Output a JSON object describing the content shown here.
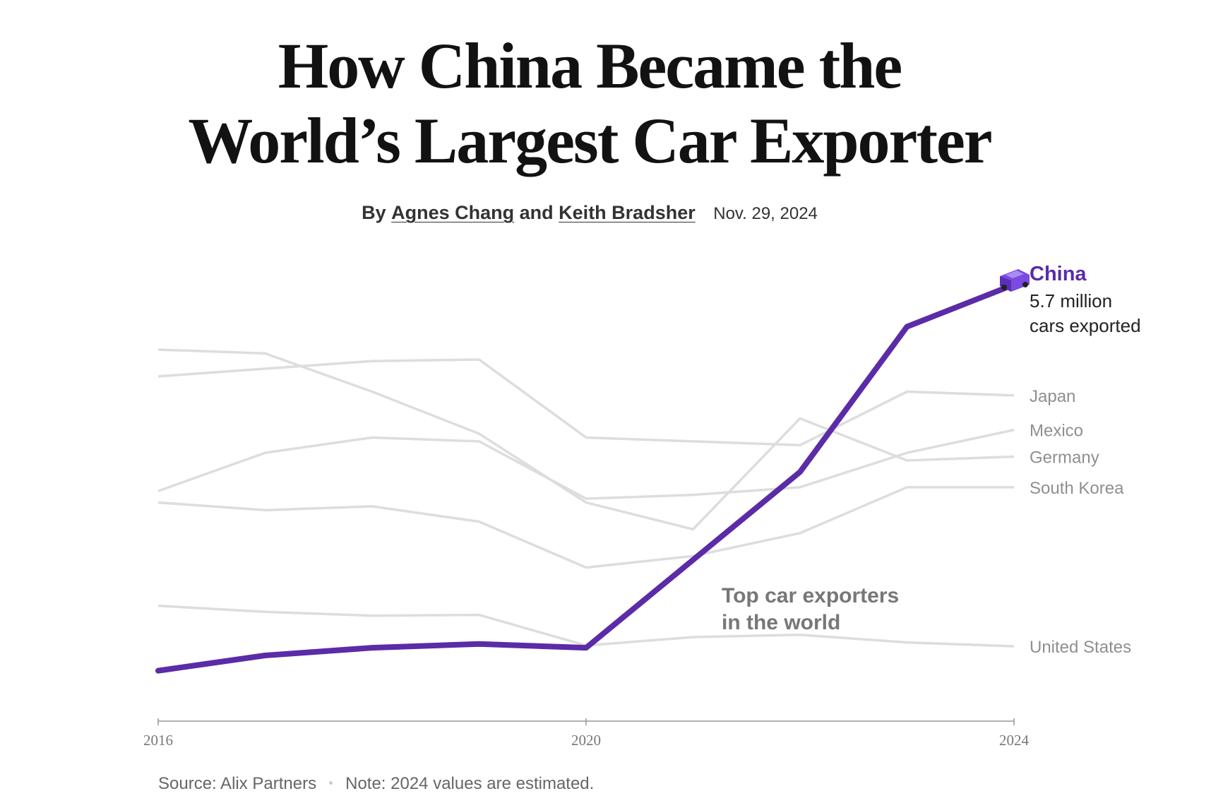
{
  "headline": {
    "line1": "How China Became the",
    "line2": "World’s Largest Car Exporter"
  },
  "byline": {
    "by": "By",
    "author1": "Agnes Chang",
    "and": "and",
    "author2": "Keith Bradsher",
    "date": "Nov. 29, 2024"
  },
  "chart_data": {
    "type": "line",
    "title": "Top car exporters in the world",
    "annotation": {
      "line1": "Top car exporters",
      "line2": "in the world"
    },
    "x_ticks": [
      "2016",
      "2020",
      "2024"
    ],
    "x": [
      2016,
      2017,
      2018,
      2019,
      2020,
      2021,
      2022,
      2023,
      2024
    ],
    "ylim": [
      0,
      6.3
    ],
    "ylabel": "",
    "grid": false,
    "highlight": {
      "name": "China",
      "line1": "5.7 million",
      "line2": "cars exported",
      "color": "#5b2ba8",
      "icon": "car-icon"
    },
    "series": [
      {
        "name": "China",
        "values": [
          0.65,
          0.85,
          0.95,
          1.0,
          0.95,
          2.1,
          3.25,
          5.15,
          5.7
        ],
        "highlight": true
      },
      {
        "name": "Japan",
        "values": [
          4.5,
          4.6,
          4.7,
          4.72,
          3.7,
          3.65,
          3.6,
          4.3,
          4.25
        ]
      },
      {
        "name": "Mexico",
        "values": [
          3.0,
          3.5,
          3.7,
          3.65,
          2.9,
          2.95,
          3.05,
          3.5,
          3.8
        ]
      },
      {
        "name": "Germany",
        "values": [
          4.85,
          4.8,
          4.3,
          3.75,
          2.85,
          2.5,
          3.95,
          3.4,
          3.45
        ]
      },
      {
        "name": "South Korea",
        "values": [
          2.85,
          2.75,
          2.8,
          2.6,
          2.0,
          2.15,
          2.45,
          3.05,
          3.05
        ]
      },
      {
        "name": "United States",
        "values": [
          1.5,
          1.42,
          1.37,
          1.38,
          0.98,
          1.09,
          1.12,
          1.02,
          0.97
        ]
      }
    ],
    "colors": {
      "highlight": "#5b2ba8",
      "others": "#dddddd",
      "other_labels": "#8f8f8f",
      "axis": "#999999"
    }
  },
  "footer": {
    "source": "Source: Alix Partners",
    "note": "Note: 2024 values are estimated."
  }
}
